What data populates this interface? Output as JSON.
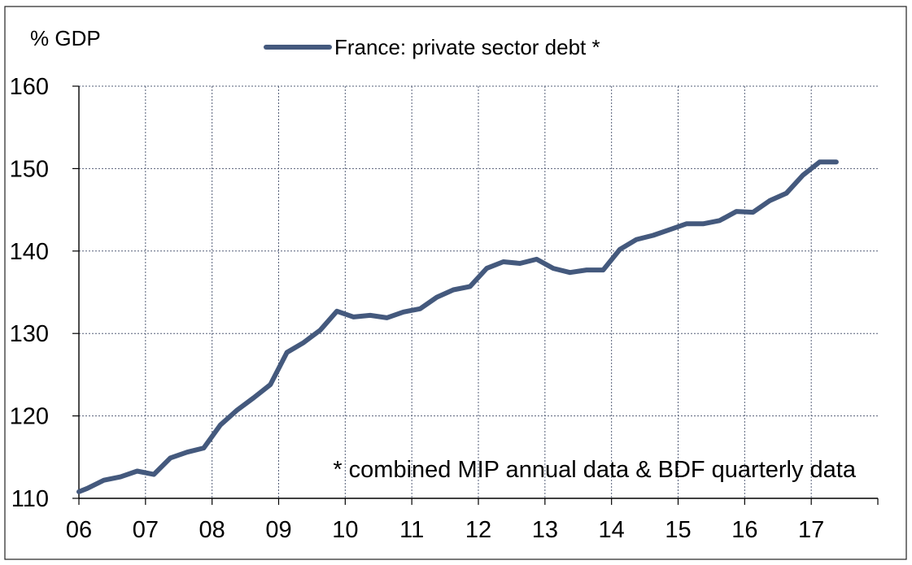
{
  "chart_data": {
    "type": "line",
    "ylabel": "% GDP",
    "ylim": [
      110,
      160
    ],
    "yticks": [
      110,
      120,
      130,
      140,
      150,
      160
    ],
    "xlim": [
      2006,
      2018
    ],
    "xtick_labels": [
      "06",
      "07",
      "08",
      "09",
      "10",
      "11",
      "12",
      "13",
      "14",
      "15",
      "16",
      "17"
    ],
    "grid": true,
    "legend_position": "top-center",
    "annotation": "* combined MIP annual data & BDF quarterly data",
    "series": [
      {
        "name": "France: private sector debt *",
        "color": "#44597d",
        "x": [
          2006.0,
          2006.125,
          2006.375,
          2006.625,
          2006.875,
          2007.125,
          2007.375,
          2007.625,
          2007.875,
          2008.125,
          2008.375,
          2008.625,
          2008.875,
          2009.125,
          2009.375,
          2009.625,
          2009.875,
          2010.125,
          2010.375,
          2010.625,
          2010.875,
          2011.125,
          2011.375,
          2011.625,
          2011.875,
          2012.125,
          2012.375,
          2012.625,
          2012.875,
          2013.125,
          2013.375,
          2013.625,
          2013.875,
          2014.125,
          2014.375,
          2014.625,
          2014.875,
          2015.125,
          2015.375,
          2015.625,
          2015.875,
          2016.125,
          2016.375,
          2016.625,
          2016.875,
          2017.125,
          2017.375
        ],
        "values": [
          110.8,
          111.2,
          112.2,
          112.6,
          113.3,
          112.9,
          114.9,
          115.6,
          116.1,
          118.9,
          120.7,
          122.2,
          123.8,
          127.7,
          128.9,
          130.4,
          132.7,
          132.0,
          132.2,
          131.9,
          132.6,
          133.0,
          134.4,
          135.3,
          135.7,
          137.9,
          138.7,
          138.5,
          139.0,
          137.9,
          137.4,
          137.7,
          137.7,
          140.2,
          141.4,
          141.9,
          142.6,
          143.3,
          143.3,
          143.7,
          144.8,
          144.7,
          146.1,
          147.0,
          149.2,
          150.8,
          150.8
        ]
      }
    ]
  }
}
